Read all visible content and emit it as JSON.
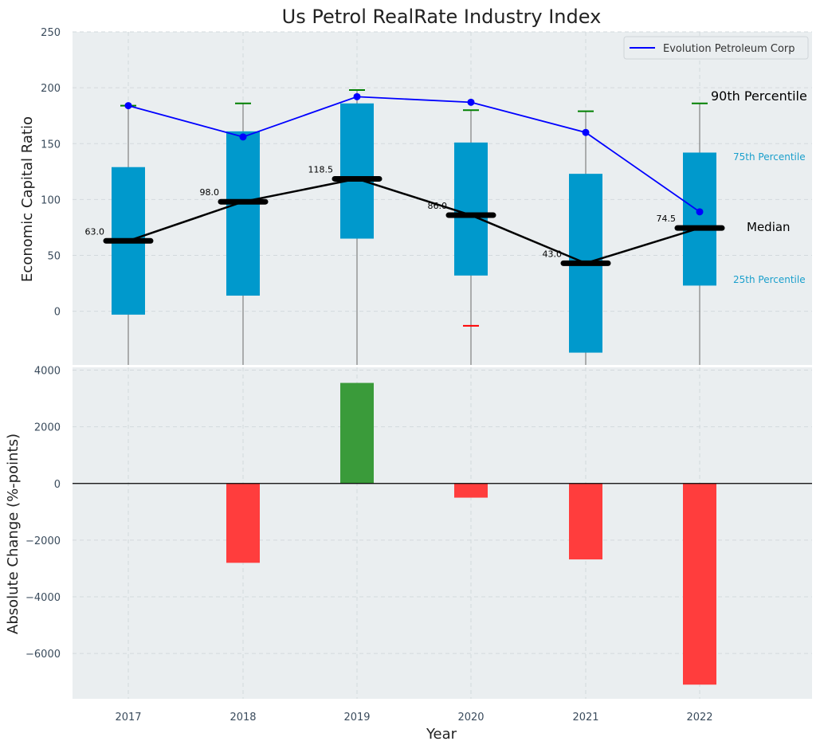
{
  "chart_data": [
    {
      "type": "box",
      "title": "Us Petrol RealRate Industry Index",
      "ylabel": "Economic Capital Ratio",
      "ylim": [
        -48,
        250
      ],
      "yticks": [
        "0",
        "50",
        "100",
        "150",
        "200",
        "250"
      ],
      "ytick_values": [
        0,
        50,
        100,
        150,
        200,
        250
      ],
      "categories": [
        "2017",
        "2018",
        "2019",
        "2020",
        "2021",
        "2022"
      ],
      "p25": [
        -3,
        14,
        65,
        32,
        -37,
        23
      ],
      "p75": [
        129,
        161,
        186,
        151,
        123,
        142
      ],
      "median": [
        63.0,
        98.0,
        118.5,
        86.0,
        43.0,
        74.5
      ],
      "median_labels": [
        "63.0",
        "98.0",
        "118.5",
        "86.0",
        "43.0",
        "74.5"
      ],
      "p90": [
        184,
        186,
        198,
        180,
        179,
        186
      ],
      "p10": [
        null,
        null,
        null,
        -13,
        null,
        null
      ],
      "series": [
        {
          "name": "Evolution Petroleum Corp",
          "values": [
            184,
            156,
            192,
            187,
            160,
            89
          ]
        }
      ],
      "legend_loc": "top-right",
      "annotations": [
        "90th Percentile",
        "75th Percentile",
        "Median",
        "25th Percentile"
      ],
      "colors": {
        "box": "#0099cc",
        "company": "#0000ff",
        "median": "#000000",
        "p90_cap": "#008000",
        "p10_cap": "#ff0000",
        "whisker": "#808080"
      }
    },
    {
      "type": "bar",
      "ylabel": "Absolute Change (%-points)",
      "xlabel": "Year",
      "ylim": [
        -7600,
        4100
      ],
      "yticks": [
        "−6000",
        "−4000",
        "−2000",
        "0",
        "2000",
        "4000"
      ],
      "ytick_values": [
        -6000,
        -4000,
        -2000,
        0,
        2000,
        4000
      ],
      "categories": [
        "2017",
        "2018",
        "2019",
        "2020",
        "2021",
        "2022"
      ],
      "values": [
        null,
        -2800,
        3550,
        -500,
        -2680,
        -7100
      ],
      "colors": {
        "positive": "#3a9b3a",
        "negative": "#ff3d3d"
      }
    }
  ]
}
